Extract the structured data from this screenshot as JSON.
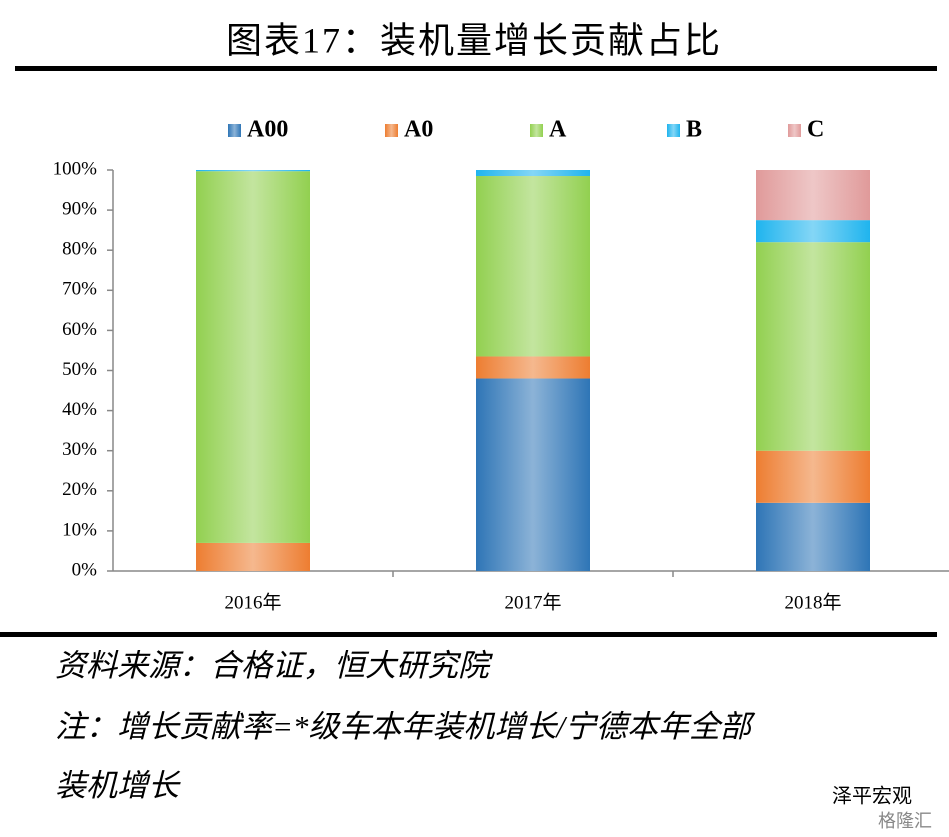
{
  "chart_data": {
    "type": "stacked_bar",
    "title": "图表17：装机量增长贡献占比",
    "categories": [
      "2016年",
      "2017年",
      "2018年"
    ],
    "series": [
      {
        "name": "A00",
        "color": "#2e75b6",
        "values": [
          0,
          48,
          17
        ]
      },
      {
        "name": "A0",
        "color": "#ed7d31",
        "values": [
          7,
          5.5,
          13
        ]
      },
      {
        "name": "A",
        "color": "#92d050",
        "values": [
          92.7,
          45,
          52
        ]
      },
      {
        "name": "B",
        "color": "#1fb4ee",
        "values": [
          0.3,
          1.5,
          5.5
        ]
      },
      {
        "name": "C",
        "color": "#e09a9a",
        "values": [
          0,
          0,
          12.5
        ]
      }
    ],
    "ylim": [
      0,
      100
    ],
    "yticks": [
      {
        "value": 0,
        "label": "0%"
      },
      {
        "value": 10,
        "label": "10%"
      },
      {
        "value": 20,
        "label": "20%"
      },
      {
        "value": 30,
        "label": "30%"
      },
      {
        "value": 40,
        "label": "40%"
      },
      {
        "value": 50,
        "label": "50%"
      },
      {
        "value": 60,
        "label": "60%"
      },
      {
        "value": 70,
        "label": "70%"
      },
      {
        "value": 80,
        "label": "80%"
      },
      {
        "value": 90,
        "label": "90%"
      },
      {
        "value": 100,
        "label": "100%"
      }
    ],
    "grid": false,
    "legend": "top"
  },
  "footer": {
    "source": "资料来源：合格证，恒大研究院",
    "note": [
      "注：增长贡献率=*级车本年装机增长/宁德本年全部",
      "装机增长"
    ]
  },
  "watermark": {
    "account": "泽平宏观",
    "brand": "格隆汇"
  }
}
